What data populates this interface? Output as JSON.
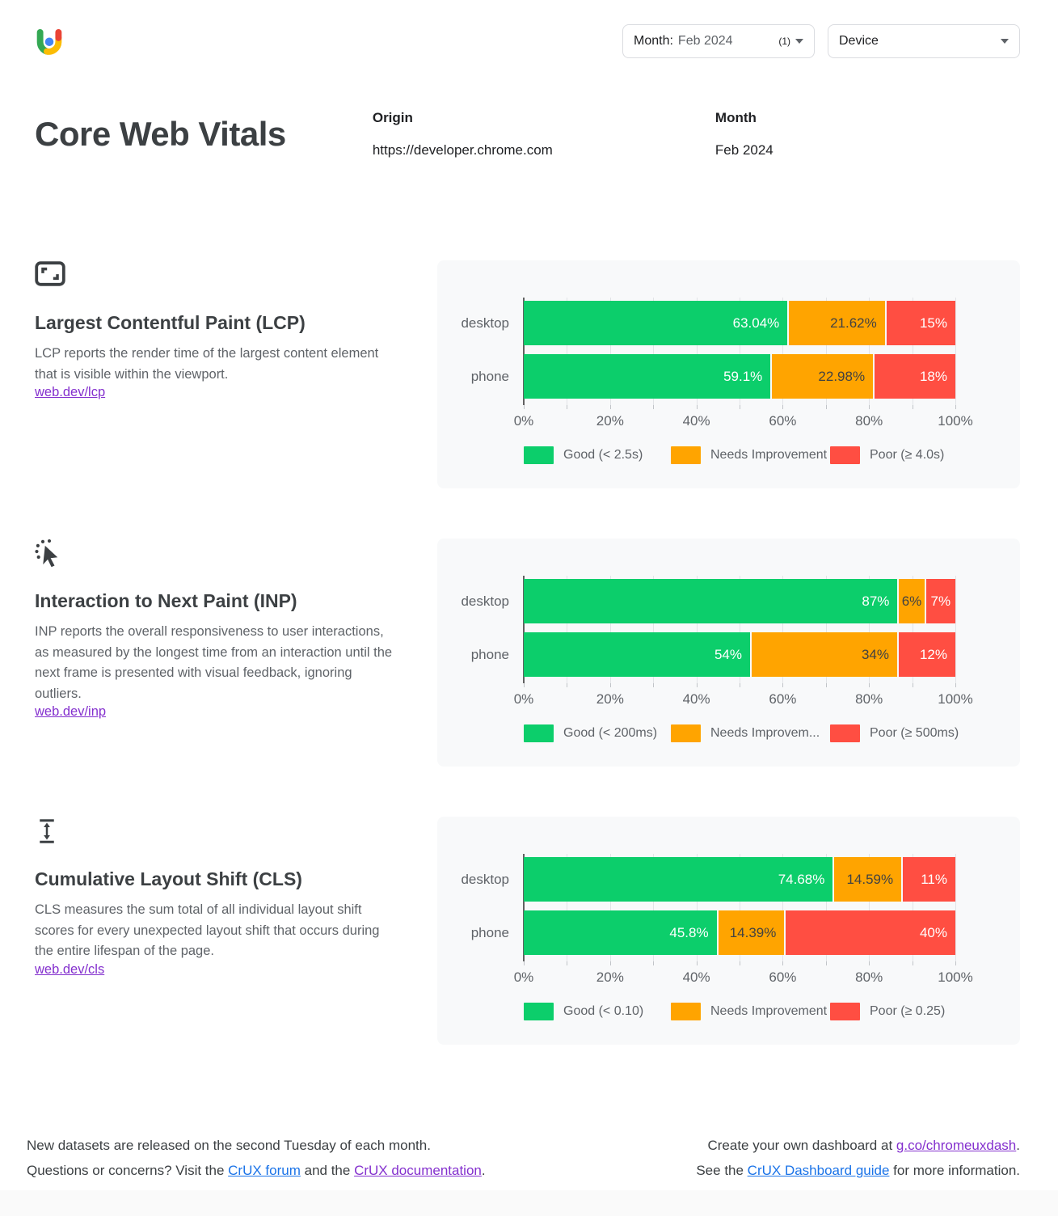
{
  "header": {
    "month_filter": {
      "label": "Month:",
      "value": "Feb 2024",
      "count": "(1)"
    },
    "device_filter": {
      "label": "Device"
    }
  },
  "title": "Core Web Vitals",
  "meta": {
    "origin_label": "Origin",
    "origin_value": "https://developer.chrome.com",
    "month_label": "Month",
    "month_value": "Feb 2024"
  },
  "colors": {
    "good": "#0CCE6B",
    "needs_improvement": "#FFA400",
    "poor": "#FF4E42",
    "link_blue": "#1a73e8",
    "link_purple": "#8430ce",
    "panel_bg": "#f8f9fa"
  },
  "sections": [
    {
      "icon": "fit-screen-icon",
      "title": "Largest Contentful Paint (LCP)",
      "description": "LCP reports the render time of the largest content element that is visible within the viewport.",
      "link_label": "web.dev/lcp"
    },
    {
      "icon": "cursor-click-icon",
      "title": "Interaction to Next Paint (INP)",
      "description": "INP reports the overall responsiveness to user interactions, as measured by the longest time from an interaction until the next frame is presented with visual feedback, ignoring outliers.",
      "link_label": "web.dev/inp"
    },
    {
      "icon": "layout-shift-icon",
      "title": "Cumulative Layout Shift (CLS)",
      "description": "CLS measures the sum total of all individual layout shift scores for every unexpected layout shift that occurs during the entire lifespan of the page.",
      "link_label": "web.dev/cls"
    }
  ],
  "chart_data": [
    {
      "type": "bar",
      "metric": "LCP",
      "orientation": "horizontal-stacked",
      "categories": [
        "desktop",
        "phone"
      ],
      "series": [
        {
          "name": "Good (< 2.5s)",
          "color": "#0CCE6B",
          "values": [
            63.04,
            59.1
          ],
          "labels": [
            "63.04%",
            "59.1%"
          ]
        },
        {
          "name": "Needs Improvement",
          "color": "#FFA400",
          "values": [
            21.62,
            22.98
          ],
          "labels": [
            "21.62%",
            "22.98%"
          ]
        },
        {
          "name": "Poor (≥ 4.0s)",
          "color": "#FF4E42",
          "values": [
            15,
            18
          ],
          "labels": [
            "15%",
            "18%"
          ]
        }
      ],
      "x_ticks": [
        "0%",
        "20%",
        "40%",
        "60%",
        "80%",
        "100%"
      ],
      "xlim": [
        0,
        100
      ],
      "grid": true,
      "legend_position": "bottom"
    },
    {
      "type": "bar",
      "metric": "INP",
      "orientation": "horizontal-stacked",
      "categories": [
        "desktop",
        "phone"
      ],
      "series": [
        {
          "name": "Good (< 200ms)",
          "color": "#0CCE6B",
          "values": [
            87,
            54
          ],
          "labels": [
            "87%",
            "54%"
          ]
        },
        {
          "name": "Needs Improvem...",
          "color": "#FFA400",
          "values": [
            6,
            34
          ],
          "labels": [
            "6%",
            "34%"
          ]
        },
        {
          "name": "Poor (≥ 500ms)",
          "color": "#FF4E42",
          "values": [
            7,
            12
          ],
          "labels": [
            "7%",
            "12%"
          ]
        }
      ],
      "x_ticks": [
        "0%",
        "20%",
        "40%",
        "60%",
        "80%",
        "100%"
      ],
      "xlim": [
        0,
        100
      ],
      "grid": true,
      "legend_position": "bottom"
    },
    {
      "type": "bar",
      "metric": "CLS",
      "orientation": "horizontal-stacked",
      "categories": [
        "desktop",
        "phone"
      ],
      "series": [
        {
          "name": "Good (< 0.10)",
          "color": "#0CCE6B",
          "values": [
            74.68,
            45.8
          ],
          "labels": [
            "74.68%",
            "45.8%"
          ]
        },
        {
          "name": "Needs Improvement",
          "color": "#FFA400",
          "values": [
            14.59,
            14.39
          ],
          "labels": [
            "14.59%",
            "14.39%"
          ]
        },
        {
          "name": "Poor (≥ 0.25)",
          "color": "#FF4E42",
          "values": [
            11,
            40
          ],
          "labels": [
            "11%",
            "40%"
          ]
        }
      ],
      "x_ticks": [
        "0%",
        "20%",
        "40%",
        "60%",
        "80%",
        "100%"
      ],
      "xlim": [
        0,
        100
      ],
      "grid": true,
      "legend_position": "bottom"
    }
  ],
  "footer": {
    "left": [
      [
        {
          "t": "New datasets are released on the second Tuesday of each month."
        }
      ],
      [
        {
          "t": "Questions or concerns? Visit the "
        },
        {
          "t": "CrUX forum",
          "link": "blue"
        },
        {
          "t": " and the "
        },
        {
          "t": "CrUX documentation",
          "link": "purple"
        },
        {
          "t": "."
        }
      ]
    ],
    "right": [
      [
        {
          "t": "Create your own dashboard at "
        },
        {
          "t": "g.co/chromeuxdash",
          "link": "purple"
        },
        {
          "t": "."
        }
      ],
      [
        {
          "t": "See the "
        },
        {
          "t": "CrUX Dashboard guide",
          "link": "blue"
        },
        {
          "t": " for more information."
        }
      ]
    ]
  }
}
